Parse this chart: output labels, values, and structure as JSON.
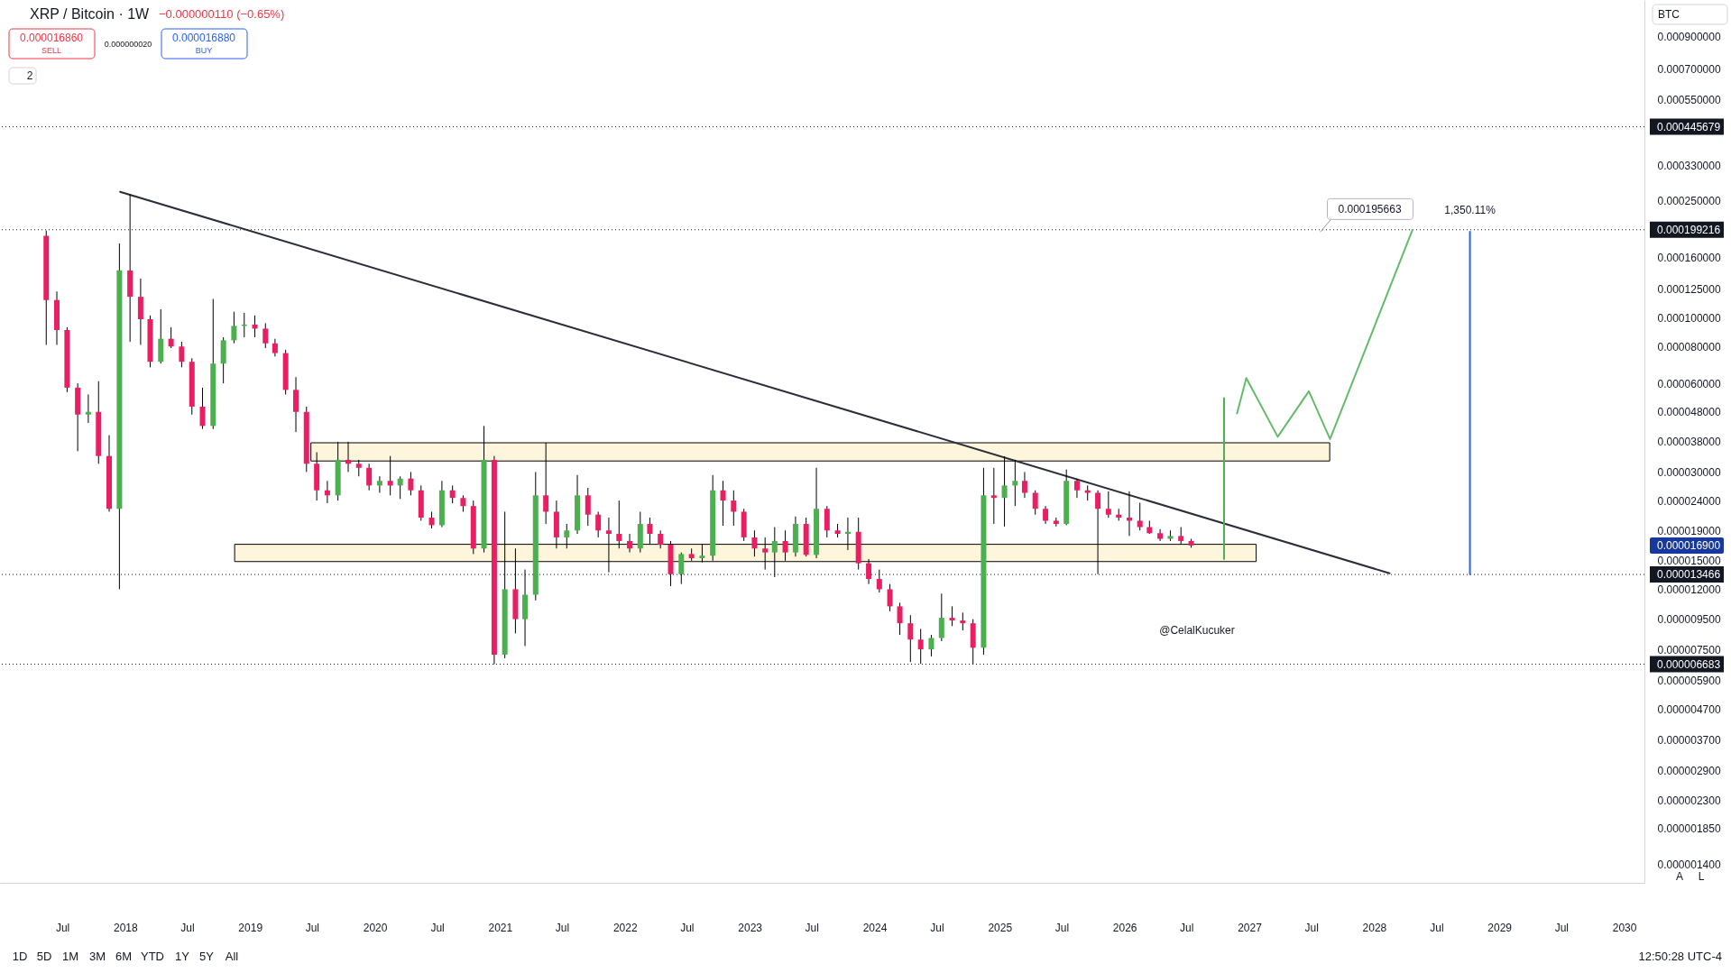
{
  "chart_data": {
    "type": "candlestick",
    "title": "XRP / Bitcoin · 1W",
    "subtitle": "−0.000000110 (−0.65%)",
    "x": [
      "2017-05-15",
      "2017-06-15",
      "2017-07-15",
      "2017-08-15",
      "2017-09-15",
      "2017-10-15",
      "2017-11-15",
      "2017-12-15",
      "2018-01-15",
      "2018-02-15",
      "2018-03-15",
      "2018-04-15",
      "2018-05-15",
      "2018-06-15",
      "2018-07-15",
      "2018-08-15",
      "2018-09-15",
      "2018-10-15",
      "2018-11-15",
      "2018-12-15",
      "2019-01-15",
      "2019-02-15",
      "2019-03-15",
      "2019-04-15",
      "2019-05-15",
      "2019-06-15",
      "2019-07-15",
      "2019-08-15",
      "2019-09-15",
      "2019-10-15",
      "2019-11-15",
      "2019-12-15",
      "2020-01-15",
      "2020-02-15",
      "2020-03-15",
      "2020-04-15",
      "2020-05-15",
      "2020-06-15",
      "2020-07-15",
      "2020-08-15",
      "2020-09-15",
      "2020-10-15",
      "2020-11-15",
      "2020-12-15",
      "2021-01-15",
      "2021-02-15",
      "2021-03-15",
      "2021-04-15",
      "2021-05-15",
      "2021-06-15",
      "2021-07-15",
      "2021-08-15",
      "2021-09-15",
      "2021-10-15",
      "2021-11-15",
      "2021-12-15",
      "2022-01-15",
      "2022-02-15",
      "2022-03-15",
      "2022-04-15",
      "2022-05-15",
      "2022-06-15",
      "2022-07-15",
      "2022-08-15",
      "2022-09-15",
      "2022-10-15",
      "2022-11-15",
      "2022-12-15",
      "2023-01-15",
      "2023-02-15",
      "2023-03-15",
      "2023-04-15",
      "2023-05-15",
      "2023-06-15",
      "2023-07-15",
      "2023-08-15",
      "2023-09-15",
      "2023-10-15",
      "2023-11-15",
      "2023-12-15",
      "2024-01-15",
      "2024-02-15",
      "2024-03-15",
      "2024-04-15",
      "2024-05-15",
      "2024-06-15",
      "2024-07-15",
      "2024-08-15",
      "2024-09-15",
      "2024-10-15",
      "2024-11-15",
      "2024-12-15",
      "2025-01-15",
      "2025-02-15",
      "2025-03-15",
      "2025-04-15",
      "2025-05-15",
      "2025-06-15",
      "2025-07-15",
      "2025-08-15",
      "2025-09-15",
      "2025-10-15",
      "2025-11-15",
      "2025-12-15",
      "2026-01-15",
      "2026-02-15",
      "2026-03-15",
      "2026-04-15",
      "2026-05-15",
      "2026-06-15",
      "2026-07-15"
    ],
    "ohlc": [
      [
        0.00019,
        0.000198,
        8.1e-05,
        0.000115
      ],
      [
        0.000115,
        0.000123,
        8.1e-05,
        9.1e-05
      ],
      [
        9.1e-05,
        9.3e-05,
        5.6e-05,
        5.8e-05
      ],
      [
        5.8e-05,
        6e-05,
        3.53e-05,
        4.7e-05
      ],
      [
        4.7e-05,
        5.5e-05,
        4.4e-05,
        4.8e-05
      ],
      [
        4.8e-05,
        6.1e-05,
        3.2e-05,
        3.4e-05
      ],
      [
        3.4e-05,
        4e-05,
        2.2e-05,
        2.25e-05
      ],
      [
        2.25e-05,
        0.000179,
        1.2e-05,
        0.000145
      ],
      [
        0.000145,
        0.000263,
        8.3e-05,
        0.000118
      ],
      [
        0.000118,
        0.000136,
        8.1e-05,
        9.9e-05
      ],
      [
        9.9e-05,
        0.000102,
        6.8e-05,
        7.1e-05
      ],
      [
        7.1e-05,
        0.000107,
        7e-05,
        8.5e-05
      ],
      [
        8.5e-05,
        9.3e-05,
        7.9e-05,
        8e-05
      ],
      [
        8e-05,
        8.3e-05,
        6.8e-05,
        7.1e-05
      ],
      [
        7.1e-05,
        7.3e-05,
        4.7e-05,
        5e-05
      ],
      [
        5e-05,
        5.8e-05,
        4.2e-05,
        4.3e-05
      ],
      [
        4.3e-05,
        0.000116,
        4.2e-05,
        7e-05
      ],
      [
        7e-05,
        8.6e-05,
        6e-05,
        8.4e-05
      ],
      [
        8.4e-05,
        0.000105,
        8.2e-05,
        9.4e-05
      ],
      [
        9.4e-05,
        0.000104,
        8.6e-05,
        9.5e-05
      ],
      [
        9.5e-05,
        0.000102,
        8.6e-05,
        9.2e-05
      ],
      [
        9.2e-05,
        9.6e-05,
        7.9e-05,
        8.2e-05
      ],
      [
        8.2e-05,
        8.5e-05,
        7.4e-05,
        7.6e-05
      ],
      [
        7.6e-05,
        7.8e-05,
        5.5e-05,
        5.7e-05
      ],
      [
        5.7e-05,
        6.3e-05,
        4.1e-05,
        4.8e-05
      ],
      [
        4.8e-05,
        5e-05,
        3e-05,
        3.2e-05
      ],
      [
        3.2e-05,
        3.5e-05,
        2.4e-05,
        2.6e-05
      ],
      [
        2.6e-05,
        2.8e-05,
        2.35e-05,
        2.5e-05
      ],
      [
        2.5e-05,
        3.8e-05,
        2.4e-05,
        3.3e-05
      ],
      [
        3.3e-05,
        3.8e-05,
        3e-05,
        3.2e-05
      ],
      [
        3.2e-05,
        3.3e-05,
        2.9e-05,
        3.1e-05
      ],
      [
        3.1e-05,
        3.2e-05,
        2.6e-05,
        2.7e-05
      ],
      [
        2.7e-05,
        2.9e-05,
        2.55e-05,
        2.8e-05
      ],
      [
        2.8e-05,
        3.4e-05,
        2.5e-05,
        2.7e-05
      ],
      [
        2.7e-05,
        2.9e-05,
        2.43e-05,
        2.85e-05
      ],
      [
        2.85e-05,
        3e-05,
        2.5e-05,
        2.6e-05
      ],
      [
        2.6e-05,
        2.7e-05,
        2.05e-05,
        2.1e-05
      ],
      [
        2.1e-05,
        2.2e-05,
        1.93e-05,
        1.98e-05
      ],
      [
        1.98e-05,
        2.8e-05,
        1.95e-05,
        2.6e-05
      ],
      [
        2.6e-05,
        2.7e-05,
        2.35e-05,
        2.45e-05
      ],
      [
        2.45e-05,
        2.5e-05,
        2.2e-05,
        2.3e-05
      ],
      [
        2.3e-05,
        2.4e-05,
        1.58e-05,
        1.65e-05
      ],
      [
        1.65e-05,
        4.3e-05,
        1.6e-05,
        3.3e-05
      ],
      [
        3.3e-05,
        3.4e-05,
        6.68e-06,
        7.2e-06
      ],
      [
        7.2e-06,
        2.2e-05,
        7e-06,
        1.2e-05
      ],
      [
        1.2e-05,
        1.65e-05,
        8.5e-06,
        9.5e-06
      ],
      [
        9.5e-06,
        1.4e-05,
        7.7e-06,
        1.15e-05
      ],
      [
        1.15e-05,
        3e-05,
        1.1e-05,
        2.5e-05
      ],
      [
        2.5e-05,
        3.77e-05,
        2e-05,
        2.2e-05
      ],
      [
        2.2e-05,
        2.4e-05,
        1.65e-05,
        1.8e-05
      ],
      [
        1.8e-05,
        2e-05,
        1.65e-05,
        1.9e-05
      ],
      [
        1.9e-05,
        2.93e-05,
        1.85e-05,
        2.5e-05
      ],
      [
        2.5e-05,
        2.65e-05,
        1.97e-05,
        2.15e-05
      ],
      [
        2.15e-05,
        2.2e-05,
        1.8e-05,
        1.9e-05
      ],
      [
        1.9e-05,
        2.1e-05,
        1.37e-05,
        1.85e-05
      ],
      [
        1.85e-05,
        2.4e-05,
        1.65e-05,
        1.75e-05
      ],
      [
        1.75e-05,
        1.85e-05,
        1.6e-05,
        1.65e-05
      ],
      [
        1.65e-05,
        2.2e-05,
        1.6e-05,
        2e-05
      ],
      [
        2e-05,
        2.1e-05,
        1.7e-05,
        1.85e-05
      ],
      [
        1.85e-05,
        1.9e-05,
        1.65e-05,
        1.7e-05
      ],
      [
        1.7e-05,
        1.75e-05,
        1.23e-05,
        1.35e-05
      ],
      [
        1.35e-05,
        1.6e-05,
        1.25e-05,
        1.58e-05
      ],
      [
        1.58e-05,
        1.65e-05,
        1.5e-05,
        1.53e-05
      ],
      [
        1.53e-05,
        1.7e-05,
        1.48e-05,
        1.56e-05
      ],
      [
        1.56e-05,
        2.93e-05,
        1.5e-05,
        2.6e-05
      ],
      [
        2.6e-05,
        2.8e-05,
        1.97e-05,
        2.4e-05
      ],
      [
        2.4e-05,
        2.6e-05,
        1.97e-05,
        2.2e-05
      ],
      [
        2.2e-05,
        2.25e-05,
        1.75e-05,
        1.8e-05
      ],
      [
        1.8e-05,
        1.9e-05,
        1.55e-05,
        1.65e-05
      ],
      [
        1.65e-05,
        1.8e-05,
        1.4e-05,
        1.6e-05
      ],
      [
        1.6e-05,
        1.95e-05,
        1.32e-05,
        1.75e-05
      ],
      [
        1.75e-05,
        1.9e-05,
        1.5e-05,
        1.6e-05
      ],
      [
        1.6e-05,
        2.12e-05,
        1.55e-05,
        2e-05
      ],
      [
        2e-05,
        2.1e-05,
        1.55e-05,
        1.57e-05
      ],
      [
        1.57e-05,
        3.1e-05,
        1.53e-05,
        2.25e-05
      ],
      [
        2.25e-05,
        2.3e-05,
        1.8e-05,
        1.9e-05
      ],
      [
        1.9e-05,
        2e-05,
        1.8e-05,
        1.85e-05
      ],
      [
        1.85e-05,
        2.1e-05,
        1.63e-05,
        1.88e-05
      ],
      [
        1.88e-05,
        2.1e-05,
        1.4e-05,
        1.47e-05
      ],
      [
        1.47e-05,
        1.52e-05,
        1.25e-05,
        1.3e-05
      ],
      [
        1.3e-05,
        1.4e-05,
        1.17e-05,
        1.2e-05
      ],
      [
        1.2e-05,
        1.25e-05,
        1.01e-05,
        1.05e-05
      ],
      [
        1.05e-05,
        1.08e-05,
        8.4e-06,
        9.2e-06
      ],
      [
        9.2e-06,
        9.8e-06,
        6.8e-06,
        8.1e-06
      ],
      [
        8.1e-06,
        8.8e-06,
        6.7e-06,
        7.5e-06
      ],
      [
        7.5e-06,
        8.4e-06,
        7.1e-06,
        8.2e-06
      ],
      [
        8.2e-06,
        1.16e-05,
        8e-06,
        9.6e-06
      ],
      [
        9.6e-06,
        1.05e-05,
        9e-06,
        9.4e-06
      ],
      [
        9.4e-06,
        1e-05,
        8.7e-06,
        9.2e-06
      ],
      [
        9.2e-06,
        9.5e-06,
        6.68e-06,
        7.6e-06
      ],
      [
        7.6e-06,
        3.1e-05,
        7.2e-06,
        2.5e-05
      ],
      [
        2.5e-05,
        3.1e-05,
        2e-05,
        2.45e-05
      ],
      [
        2.45e-05,
        3.39e-05,
        1.96e-05,
        2.7e-05
      ],
      [
        2.7e-05,
        3.3e-05,
        2.3e-05,
        2.8e-05
      ],
      [
        2.8e-05,
        3e-05,
        2.45e-05,
        2.55e-05
      ],
      [
        2.55e-05,
        2.6e-05,
        2.15e-05,
        2.25e-05
      ],
      [
        2.25e-05,
        2.3e-05,
        2e-05,
        2.05e-05
      ],
      [
        2.05e-05,
        2.1e-05,
        1.96e-05,
        2e-05
      ],
      [
        2e-05,
        3.06e-05,
        1.98e-05,
        2.8e-05
      ],
      [
        2.8e-05,
        2.85e-05,
        2.45e-05,
        2.6e-05
      ],
      [
        2.6e-05,
        2.7e-05,
        2.4e-05,
        2.55e-05
      ],
      [
        2.55e-05,
        2.6e-05,
        1.35e-05,
        2.25e-05
      ],
      [
        2.25e-05,
        2.58e-05,
        2.1e-05,
        2.15e-05
      ],
      [
        2.15e-05,
        2.25e-05,
        2.05e-05,
        2.1e-05
      ],
      [
        2.1e-05,
        2.58e-05,
        1.82e-05,
        2.05e-05
      ],
      [
        2.05e-05,
        2.36e-05,
        1.9e-05,
        1.95e-05
      ],
      [
        1.95e-05,
        2.05e-05,
        1.85e-05,
        1.86e-05
      ],
      [
        1.86e-05,
        1.92e-05,
        1.75e-05,
        1.78e-05
      ],
      [
        1.78e-05,
        1.9e-05,
        1.75e-05,
        1.82e-05
      ],
      [
        1.82e-05,
        1.95e-05,
        1.7e-05,
        1.75e-05
      ],
      [
        1.75e-05,
        1.78e-05,
        1.66e-05,
        1.69e-05
      ]
    ],
    "colors": [
      "#e91e63",
      "#e91e63",
      "#e91e63",
      "#e91e63",
      "#4caf50",
      "#e91e63",
      "#e91e63",
      "#4caf50",
      "#e91e63",
      "#e91e63",
      "#e91e63",
      "#4caf50",
      "#e91e63",
      "#e91e63",
      "#e91e63",
      "#e91e63",
      "#4caf50",
      "#4caf50",
      "#4caf50",
      "#4caf50",
      "#e91e63",
      "#e91e63",
      "#e91e63",
      "#e91e63",
      "#e91e63",
      "#e91e63",
      "#e91e63",
      "#e91e63",
      "#4caf50",
      "#e91e63",
      "#e91e63",
      "#e91e63",
      "#4caf50",
      "#e91e63",
      "#4caf50",
      "#e91e63",
      "#e91e63",
      "#e91e63",
      "#4caf50",
      "#e91e63",
      "#e91e63",
      "#e91e63",
      "#4caf50",
      "#e91e63",
      "#4caf50",
      "#e91e63",
      "#4caf50",
      "#4caf50",
      "#e91e63",
      "#e91e63",
      "#4caf50",
      "#4caf50",
      "#e91e63",
      "#e91e63",
      "#e91e63",
      "#e91e63",
      "#e91e63",
      "#4caf50",
      "#e91e63",
      "#e91e63",
      "#e91e63",
      "#4caf50",
      "#e91e63",
      "#4caf50",
      "#4caf50",
      "#e91e63",
      "#e91e63",
      "#e91e63",
      "#e91e63",
      "#e91e63",
      "#4caf50",
      "#e91e63",
      "#4caf50",
      "#e91e63",
      "#4caf50",
      "#e91e63",
      "#e91e63",
      "#4caf50",
      "#e91e63",
      "#e91e63",
      "#e91e63",
      "#e91e63",
      "#e91e63",
      "#e91e63",
      "#e91e63",
      "#4caf50",
      "#4caf50",
      "#e91e63",
      "#e91e63",
      "#e91e63",
      "#4caf50",
      "#e91e63",
      "#4caf50",
      "#4caf50",
      "#e91e63",
      "#e91e63",
      "#e91e63",
      "#e91e63",
      "#4caf50",
      "#e91e63",
      "#e91e63",
      "#e91e63",
      "#e91e63",
      "#e91e63",
      "#e91e63",
      "#e91e63",
      "#e91e63",
      "#e91e63",
      "#4caf50",
      "#e91e63",
      "#e91e63"
    ],
    "series": [
      {
        "type": "line",
        "x": [
          "2019-06-28",
          "2027-08-24"
        ],
        "values": [
          null,
          null
        ],
        "lower": [
          3.27e-05,
          3.27e-05
        ],
        "upper": [
          3.77e-05,
          3.77e-05
        ],
        "color": "#fdf6dc"
      },
      {
        "type": "line",
        "x": [
          "2018-11-17",
          "2027-01-21"
        ],
        "values": [
          null,
          null
        ],
        "lower": [
          1.49e-05,
          1.49e-05
        ],
        "upper": [
          1.705e-05,
          1.705e-05
        ],
        "color": "#fdf6dc"
      },
      {
        "type": "line",
        "x": [
          "2017-12-17",
          "2028-02-15"
        ],
        "values": [
          0.000268,
          1.36e-05
        ],
        "color": "#2a2e39"
      },
      {
        "type": "line",
        "x": [
          "2026-10-19",
          "2026-10-19"
        ],
        "values": [
          1.52e-05,
          5.34e-05
        ],
        "color": "#4caf50"
      },
      {
        "type": "line",
        "x": [
          "2026-11-26",
          "2026-12-23",
          "2027-03-25",
          "2027-06-24",
          "2027-08-25",
          "2028-04-22"
        ],
        "values": [
          4.74e-05,
          6.25e-05,
          3.95e-05,
          5.64e-05,
          3.88e-05,
          0.000199
        ],
        "color": "#66bb6a"
      },
      {
        "type": "line",
        "x": [
          "2028-10-07",
          "2028-10-07"
        ],
        "values": [
          1.35e-05,
          0.000196
        ],
        "color": "#2962ff"
      }
    ],
    "ref_lines": [
      {
        "axis": "y",
        "value": 0.000445679,
        "label": "0.000445679",
        "color": "#131722",
        "line_style": "dotted"
      },
      {
        "axis": "y",
        "value": 0.000199216,
        "label": "0.000199216",
        "color": "#131722",
        "line_style": "dotted"
      },
      {
        "axis": "y",
        "value": 1.3466e-05,
        "label": "0.000013466",
        "color": "#131722",
        "line_style": "dotted"
      },
      {
        "axis": "y",
        "value": 6.683e-06,
        "label": "0.000006683",
        "color": "#131722",
        "line_style": "dotted"
      }
    ],
    "annotations": [
      {
        "text": "0.000195663",
        "x": "2027-07-27",
        "y": 0.000195663
      },
      {
        "text": "1,350.11%",
        "x": "2028-10-07",
        "y": 0.000196
      },
      "0.000016900",
      "@CelalKucuker",
      "0.000016860",
      "SELL",
      "0.000000020",
      "0.000016880",
      "BUY",
      "2",
      "BTC",
      "1D",
      "5D",
      "1M",
      "3M",
      "6M",
      "YTD",
      "1Y",
      "5Y",
      "All",
      "12:50:28 UTC-4",
      "A",
      "L"
    ],
    "xlim": [
      "2017-01-13",
      "2030-02-16"
    ],
    "xticks": [
      {
        "value": "2017-07",
        "label": "Jul"
      },
      "2018",
      {
        "value": "2018-07",
        "label": "Jul"
      },
      "2019",
      {
        "value": "2019-07",
        "label": "Jul"
      },
      "2020",
      {
        "value": "2020-07",
        "label": "Jul"
      },
      "2021",
      {
        "value": "2021-07",
        "label": "Jul"
      },
      "2022",
      {
        "value": "2022-07",
        "label": "Jul"
      },
      "2023",
      {
        "value": "2023-07",
        "label": "Jul"
      },
      "2024",
      {
        "value": "2024-07",
        "label": "Jul"
      },
      "2025",
      {
        "value": "2025-07",
        "label": "Jul"
      },
      "2026",
      {
        "value": "2026-07",
        "label": "Jul"
      },
      "2027",
      {
        "value": "2027-07",
        "label": "Jul"
      },
      "2028",
      {
        "value": "2028-07",
        "label": "Jul"
      },
      "2029",
      {
        "value": "2029-07",
        "label": "Jul"
      },
      "2030"
    ],
    "ylim": [
      1.21e-06,
      0.0012
    ],
    "yticks": [
      {
        "value": 0.0009,
        "label": "0.000900000"
      },
      {
        "value": 0.0007,
        "label": "0.000700000"
      },
      {
        "value": 0.00055,
        "label": "0.000550000"
      },
      {
        "value": 0.00033,
        "label": "0.000330000"
      },
      {
        "value": 0.00025,
        "label": "0.000250000"
      },
      {
        "value": 0.00016,
        "label": "0.000160000"
      },
      {
        "value": 0.000125,
        "label": "0.000125000"
      },
      {
        "value": 0.0001,
        "label": "0.000100000"
      },
      {
        "value": 8e-05,
        "label": "0.000080000"
      },
      {
        "value": 6e-05,
        "label": "0.000060000"
      },
      {
        "value": 4.8e-05,
        "label": "0.000048000"
      },
      {
        "value": 3.8e-05,
        "label": "0.000038000"
      },
      {
        "value": 3e-05,
        "label": "0.000030000"
      },
      {
        "value": 2.4e-05,
        "label": "0.000024000"
      },
      {
        "value": 1.9e-05,
        "label": "0.000019000"
      },
      {
        "value": 1.5e-05,
        "label": "0.000015000"
      },
      {
        "value": 1.2e-05,
        "label": "0.000012000"
      },
      {
        "value": 9.5e-06,
        "label": "0.000009500"
      },
      {
        "value": 7.5e-06,
        "label": "0.000007500"
      },
      {
        "value": 5.9e-06,
        "label": "0.000005900"
      },
      {
        "value": 4.7e-06,
        "label": "0.000004700"
      },
      {
        "value": 3.7e-06,
        "label": "0.000003700"
      },
      {
        "value": 2.9e-06,
        "label": "0.000002900"
      },
      {
        "value": 2.3e-06,
        "label": "0.000002300"
      },
      {
        "value": 1.85e-06,
        "label": "0.000001850"
      },
      {
        "value": 1.4e-06,
        "label": "0.000001400"
      }
    ],
    "log": true
  }
}
